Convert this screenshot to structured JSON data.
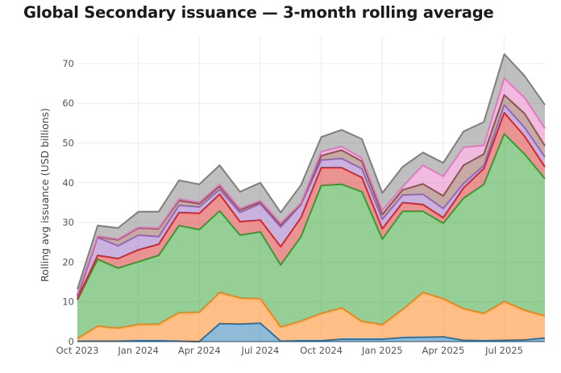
{
  "chart_data": {
    "type": "area",
    "stacked": true,
    "title": "Global Secondary issuance — 3-month rolling average",
    "xlabel": "",
    "ylabel": "Rolling avg issuance (USD billions)",
    "ylim": [
      0,
      75
    ],
    "yticks": [
      0,
      10,
      20,
      30,
      40,
      50,
      60,
      70
    ],
    "grid": true,
    "legend": "none",
    "x": [
      "2023-10",
      "2023-11",
      "2023-12",
      "2024-01",
      "2024-02",
      "2024-03",
      "2024-04",
      "2024-05",
      "2024-06",
      "2024-07",
      "2024-08",
      "2024-09",
      "2024-10",
      "2024-11",
      "2024-12",
      "2025-01",
      "2025-02",
      "2025-03",
      "2025-04",
      "2025-05",
      "2025-06",
      "2025-07",
      "2025-08",
      "2025-09"
    ],
    "xticks": [
      {
        "index": 0,
        "label": "Oct 2023"
      },
      {
        "index": 3,
        "label": "Jan 2024"
      },
      {
        "index": 6,
        "label": "Apr 2024"
      },
      {
        "index": 9,
        "label": "Jul 2024"
      },
      {
        "index": 12,
        "label": "Oct 2024"
      },
      {
        "index": 15,
        "label": "Jan 2025"
      },
      {
        "index": 18,
        "label": "Apr 2025"
      },
      {
        "index": 21,
        "label": "Jul 2025"
      }
    ],
    "series": [
      {
        "name": "",
        "color": "#1f77b4",
        "values": [
          0.1,
          0.1,
          0.1,
          0.2,
          0.2,
          0.1,
          0.0,
          4.5,
          4.4,
          4.6,
          0.1,
          0.2,
          0.2,
          0.6,
          0.6,
          0.6,
          1.0,
          1.1,
          1.2,
          0.3,
          0.2,
          0.3,
          0.4,
          0.9
        ]
      },
      {
        "name": "",
        "color": "#ff7f0e",
        "values": [
          0.7,
          3.8,
          3.3,
          4.1,
          4.2,
          7.2,
          7.4,
          7.9,
          6.6,
          6.2,
          3.6,
          5.0,
          6.9,
          7.9,
          4.5,
          3.7,
          7.1,
          11.3,
          9.6,
          8.0,
          6.9,
          9.8,
          7.5,
          5.6
        ]
      },
      {
        "name": "",
        "color": "#2ca02c",
        "values": [
          9.6,
          16.8,
          15.1,
          15.8,
          17.3,
          21.9,
          20.8,
          20.5,
          15.8,
          16.8,
          15.6,
          21.2,
          32.2,
          31.1,
          32.6,
          21.5,
          24.7,
          20.4,
          19.0,
          27.8,
          32.5,
          42.2,
          39.3,
          34.5
        ]
      },
      {
        "name": "",
        "color": "#d62728",
        "values": [
          0.4,
          1.0,
          2.4,
          3.0,
          2.8,
          3.3,
          4.1,
          4.2,
          3.4,
          3.0,
          4.6,
          4.8,
          4.5,
          4.2,
          3.6,
          2.6,
          2.2,
          1.7,
          1.4,
          2.6,
          4.0,
          5.3,
          4.5,
          3.0
        ]
      },
      {
        "name": "",
        "color": "#9467bd",
        "values": [
          0.4,
          4.5,
          3.2,
          3.7,
          1.9,
          1.8,
          1.6,
          1.2,
          2.3,
          4.1,
          4.9,
          3.3,
          1.9,
          2.3,
          2.2,
          2.4,
          1.9,
          2.6,
          2.3,
          1.1,
          0.8,
          2.0,
          2.2,
          2.5
        ]
      },
      {
        "name": "",
        "color": "#8c564b",
        "values": [
          0.4,
          0.2,
          1.5,
          1.8,
          2.0,
          1.2,
          0.8,
          0.8,
          0.6,
          0.4,
          0.6,
          0.2,
          1.1,
          2.1,
          1.9,
          1.2,
          1.3,
          2.6,
          3.2,
          4.6,
          2.8,
          2.5,
          3.5,
          2.8
        ]
      },
      {
        "name": "",
        "color": "#e377c2",
        "values": [
          0.4,
          0.2,
          0.2,
          0.2,
          0.2,
          0.4,
          0.4,
          0.5,
          0.4,
          0.4,
          0.4,
          0.2,
          1.0,
          0.9,
          0.8,
          1.0,
          0.8,
          4.7,
          4.9,
          4.5,
          2.2,
          4.2,
          4.0,
          4.4
        ]
      },
      {
        "name": "",
        "color": "#7f7f7f",
        "values": [
          1.2,
          2.6,
          2.8,
          3.9,
          4.1,
          4.7,
          4.5,
          4.8,
          4.2,
          4.5,
          2.7,
          4.5,
          3.7,
          4.2,
          4.8,
          4.4,
          5.0,
          3.2,
          3.4,
          4.0,
          5.9,
          6.1,
          5.5,
          5.9
        ]
      }
    ]
  }
}
